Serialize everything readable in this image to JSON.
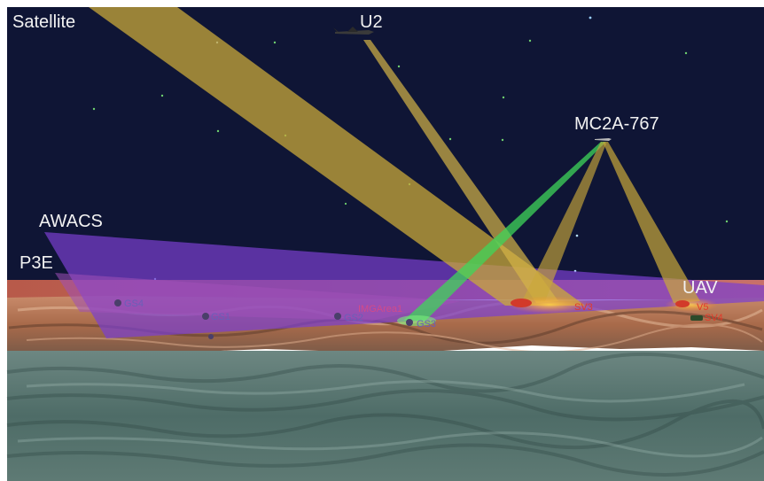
{
  "platforms": {
    "satellite": "Satellite",
    "u2": "U2",
    "mc2a": "MC2A-767",
    "awacs": "AWACS",
    "p3e": "P3E",
    "uav": "UAV"
  },
  "ground_stations": {
    "gs4": "GS4",
    "gs1": "GS1",
    "gs2": "GS2",
    "gs3": "GS3"
  },
  "areas": {
    "img_area": "IMGArea1"
  },
  "vehicles": {
    "sv3": "SV3",
    "sv4": "SV4",
    "sv5": "V5"
  },
  "colors": {
    "sky": "#0f1535",
    "satellite_beam": "#c9a83a",
    "u2_beam": "#d4b347",
    "mc2a_green_beam": "#3fd65a",
    "awacs_beam": "#7a3fd0",
    "p3e_beam": "#9a4fb0",
    "horizon_band": "#c96a5a",
    "sea": "#4f6e69",
    "ground_label": "#6a5fb8",
    "vehicle_label": "#e23a2a"
  }
}
